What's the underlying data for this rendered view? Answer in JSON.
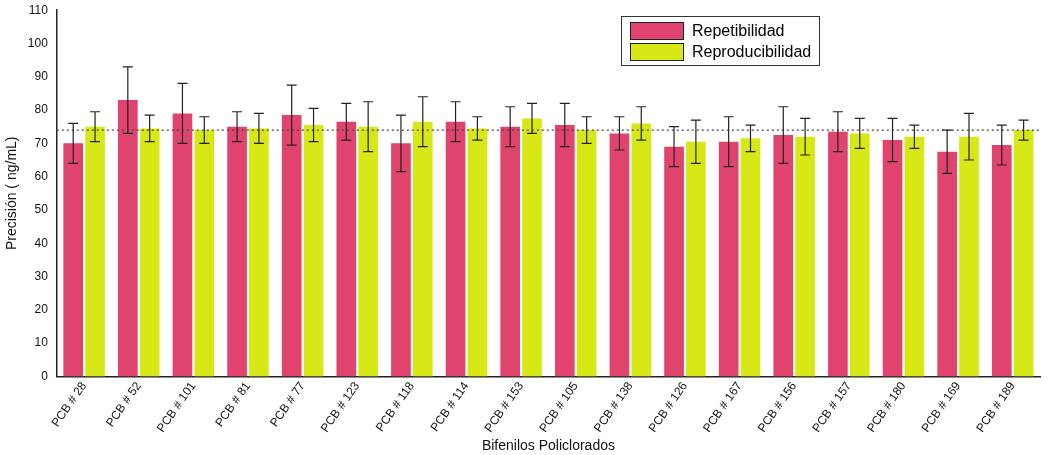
{
  "chart_data": {
    "type": "bar",
    "xlabel": "Bifenilos Policlorados",
    "ylabel": "Precisión ( ng/mL)",
    "categories": [
      "PCB # 28",
      "PCB # 52",
      "PCB # 101",
      "PCB # 81",
      "PCB # 77",
      "PCB # 123",
      "PCB # 118",
      "PCB # 114",
      "PCB # 153",
      "PCB # 105",
      "PCB # 138",
      "PCB # 126",
      "PCB # 167",
      "PCB # 156",
      "PCB # 157",
      "PCB # 180",
      "PCB # 169",
      "PCB # 189"
    ],
    "series": [
      {
        "name": "Repetibilidad",
        "color": "#e0446e",
        "values": [
          70,
          83,
          79,
          75,
          78.5,
          76.5,
          70,
          76.5,
          75,
          75.5,
          73,
          69,
          70.5,
          72.5,
          73.5,
          71,
          67.5,
          69.5
        ],
        "errors": [
          6,
          10,
          9,
          4.5,
          9,
          5.5,
          8.5,
          6,
          6,
          6.5,
          5,
          6,
          7.5,
          8.5,
          6,
          6.5,
          6.5,
          6
        ]
      },
      {
        "name": "Reproducibilidad",
        "color": "#d8e817",
        "values": [
          75,
          74.5,
          74,
          74.5,
          75.5,
          75,
          76.5,
          74.5,
          77.5,
          74,
          76,
          70.5,
          71.5,
          72,
          73,
          72,
          72,
          74
        ],
        "errors": [
          4.5,
          4,
          4,
          4.5,
          5,
          7.5,
          7.5,
          3.5,
          4.5,
          4,
          5,
          6.5,
          4,
          5.5,
          4.5,
          3.5,
          7,
          3
        ]
      }
    ],
    "ylim": [
      0,
      110
    ],
    "yticks": [
      0,
      10,
      20,
      30,
      40,
      50,
      60,
      70,
      80,
      90,
      100,
      110
    ],
    "grid": false,
    "legend": "top right",
    "ref_lines": [
      {
        "axis": "y",
        "value": 74,
        "color": "#444444",
        "line_style": "dotted"
      }
    ]
  }
}
